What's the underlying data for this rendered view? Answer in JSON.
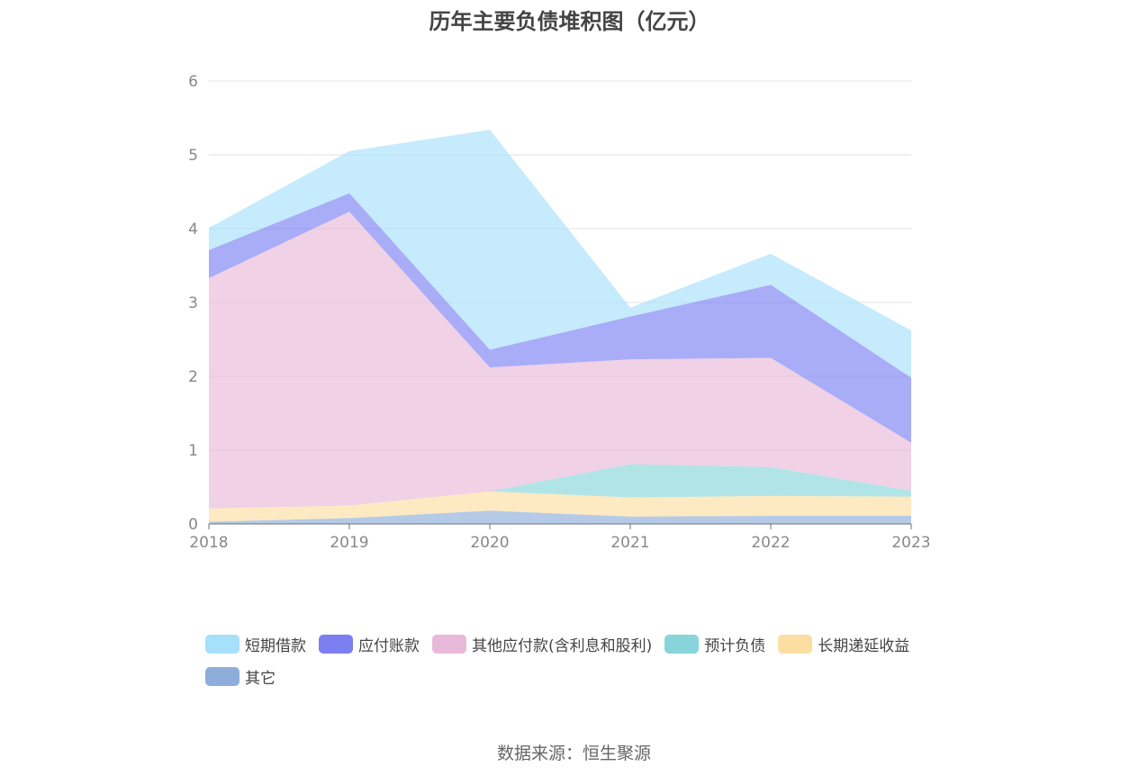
{
  "chart_data": {
    "type": "area",
    "stacked": true,
    "title": "历年主要负债堆积图（亿元）",
    "categories": [
      "2018",
      "2019",
      "2020",
      "2021",
      "2022",
      "2023"
    ],
    "ylim": [
      0,
      6
    ],
    "yticks": [
      "0",
      "1",
      "2",
      "3",
      "4",
      "5",
      "6"
    ],
    "grid": true,
    "legend_position": "bottom",
    "series": [
      {
        "name": "其它",
        "color": "#8eadda",
        "values": [
          0.03,
          0.08,
          0.18,
          0.1,
          0.11,
          0.11
        ]
      },
      {
        "name": "长期递延收益",
        "color": "#fcdea2",
        "values": [
          0.18,
          0.17,
          0.26,
          0.26,
          0.27,
          0.26
        ]
      },
      {
        "name": "预计负债",
        "color": "#87d5da",
        "values": [
          0.0,
          0.0,
          0.0,
          0.45,
          0.39,
          0.08
        ]
      },
      {
        "name": "其他应付款(含利息和股利)",
        "color": "#e8b9d9",
        "values": [
          3.12,
          3.98,
          1.68,
          1.42,
          1.48,
          0.65
        ]
      },
      {
        "name": "应付账款",
        "color": "#7b7ff2",
        "values": [
          0.38,
          0.25,
          0.24,
          0.58,
          0.99,
          0.88
        ]
      },
      {
        "name": "短期借款",
        "color": "#a6e0fa",
        "values": [
          0.3,
          0.57,
          2.98,
          0.12,
          0.42,
          0.64
        ]
      }
    ],
    "legend_order": [
      "短期借款",
      "应付账款",
      "其他应付款(含利息和股利)",
      "预计负债",
      "长期递延收益",
      "其它"
    ]
  },
  "source": "数据来源：恒生聚源"
}
